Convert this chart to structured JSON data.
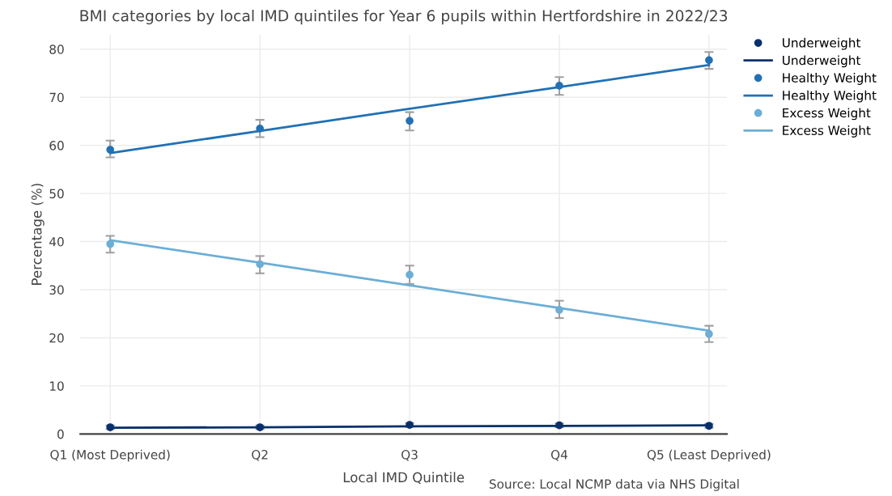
{
  "chart_data": {
    "type": "scatter",
    "title": "BMI categories by local IMD quintiles for Year 6 pupils within Hertfordshire in 2022/23",
    "xlabel": "Local IMD Quintile",
    "ylabel": "Percentage (%)",
    "annotations": [
      "Source: Local NCMP data via NHS Digital"
    ],
    "categories": [
      "Q1 (Most Deprived)",
      "Q2",
      "Q3",
      "Q4",
      "Q5 (Least Deprived)"
    ],
    "series": [
      {
        "name": "Underweight",
        "color": "#08306b",
        "marker": "circle",
        "values": [
          1.4,
          1.4,
          1.9,
          1.8,
          1.7
        ],
        "errors": [
          0.4,
          0.4,
          0.4,
          0.4,
          0.4
        ]
      },
      {
        "name": "Underweight",
        "type": "line",
        "color": "#08306b",
        "values": [
          1.3,
          1.4,
          1.6,
          1.7,
          1.8
        ]
      },
      {
        "name": "Healthy Weight",
        "color": "#2171b5",
        "marker": "circle",
        "values": [
          59.1,
          63.5,
          65.1,
          72.4,
          77.7
        ],
        "errors": [
          [
            57.5,
            61.0
          ],
          [
            61.7,
            65.3
          ],
          [
            63.1,
            66.9
          ],
          [
            70.5,
            74.2
          ],
          [
            75.9,
            79.4
          ]
        ]
      },
      {
        "name": "Healthy Weight",
        "type": "line",
        "color": "#2171b5",
        "values": [
          58.4,
          63.0,
          67.6,
          72.1,
          76.7
        ]
      },
      {
        "name": "Excess Weight",
        "color": "#6baed6",
        "marker": "circle",
        "values": [
          39.5,
          35.3,
          33.1,
          25.8,
          20.8
        ],
        "errors": [
          [
            37.7,
            41.2
          ],
          [
            33.4,
            37.0
          ],
          [
            31.2,
            35.0
          ],
          [
            24.1,
            27.7
          ],
          [
            19.1,
            22.5
          ]
        ]
      },
      {
        "name": "Excess Weight",
        "type": "line",
        "color": "#6baed6",
        "values": [
          40.3,
          35.6,
          30.9,
          26.2,
          21.5
        ]
      }
    ],
    "ylim": [
      0,
      83
    ],
    "yticks": [
      0,
      10,
      20,
      30,
      40,
      50,
      60,
      70,
      80
    ],
    "grid": true,
    "legend": "top right"
  }
}
